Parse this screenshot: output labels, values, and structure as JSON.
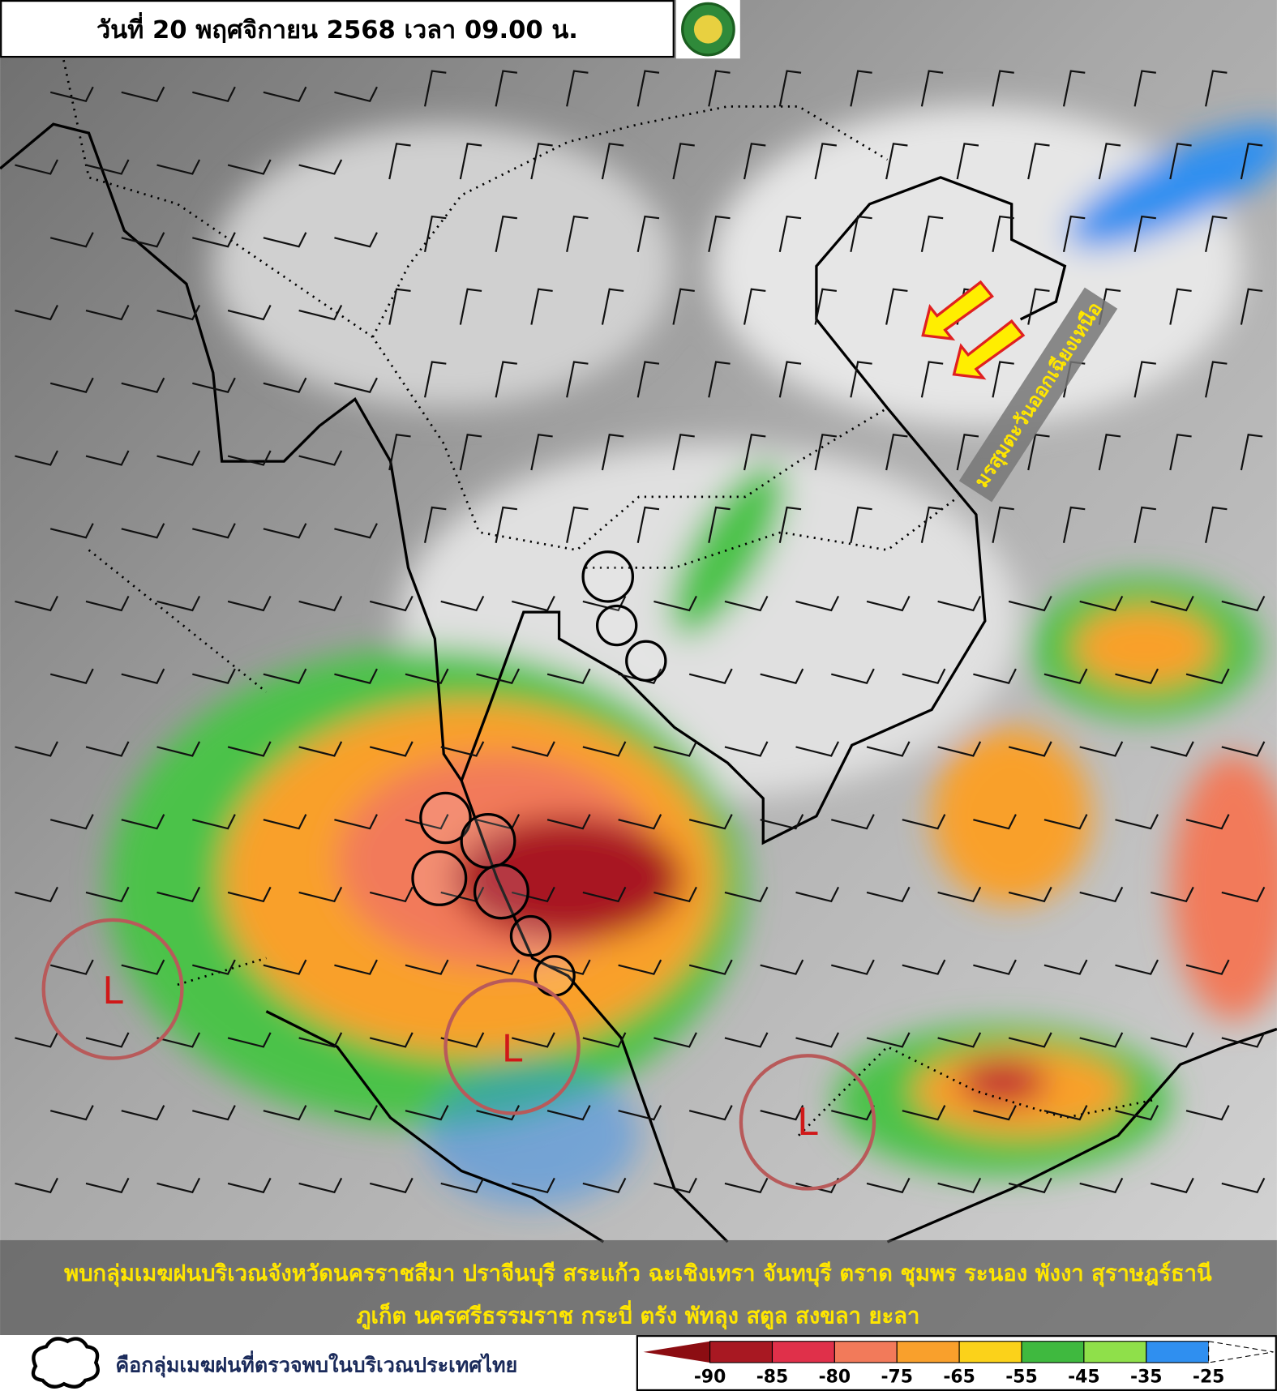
{
  "header": {
    "title": "วันที่ 20 พฤศจิกายน 2568 เวลา 09.00 น."
  },
  "annotations": {
    "monsoon": "มรสุมตะวันออกเฉียงเหนือ",
    "lows": [
      "L",
      "L",
      "L"
    ]
  },
  "caption": {
    "lines": [
      "พบกลุ่มเมฆฝนบริเวณจังหวัดนครราชสีมา ปราจีนบุรี สระแก้ว ฉะเชิงเทรา จันทบุรี ตราด ชุมพร ระนอง พังงา สุราษฎร์ธานี",
      "ภูเก็ต นครศรีธรรมราช กระบี่ ตรัง พัทลุง สตูล สงขลา ยะลา"
    ]
  },
  "legend": {
    "cloud_text": "คือกลุ่มเมฆฝนที่ตรวจพบในบริเวณประเทศไทย",
    "scale": {
      "ticks": [
        "-90",
        "-85",
        "-80",
        "-75",
        "-65",
        "-55",
        "-45",
        "-35",
        "-25"
      ],
      "colors": [
        "#8c0d12",
        "#a81822",
        "#e0304a",
        "#f27a5a",
        "#f9a02c",
        "#fbd21a",
        "#3fb93f",
        "#8fe04a",
        "#2f8ff0"
      ]
    }
  }
}
